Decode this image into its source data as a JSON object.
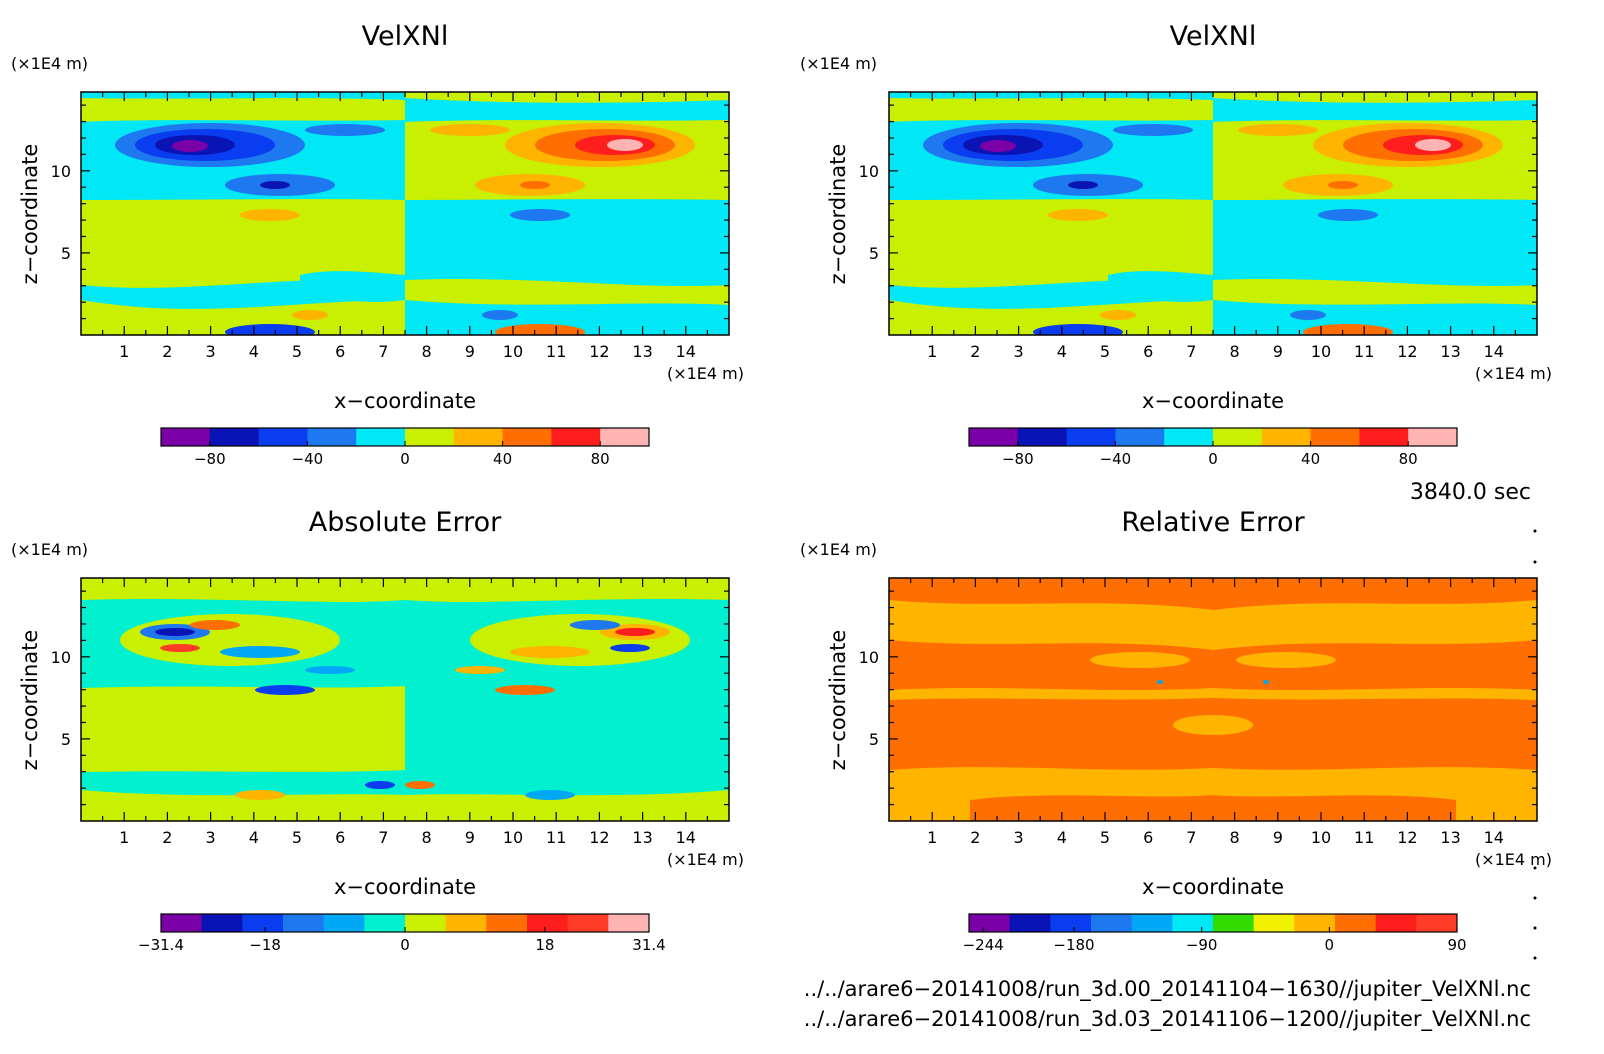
{
  "colors": {
    "purple": "#7a00a8",
    "navy": "#0a14b4",
    "blue": "#0a3cf0",
    "mid_blue": "#1e78f0",
    "sky": "#00a8f5",
    "cyan": "#00e8f5",
    "aqua": "#00f0d0",
    "lime": "#c8f000",
    "green": "#32dc00",
    "yellow": "#f0f000",
    "orange_light": "#ffb400",
    "orange": "#ff6e00",
    "red": "#ff1e1e",
    "red_orange": "#ff3c28",
    "pink": "#ffb4b4"
  },
  "chart_data": [
    {
      "type": "heatmap",
      "title": "VelXNl",
      "xlabel": "x−coordinate",
      "ylabel": "z−coordinate",
      "x_unit": "(×1E4 m)",
      "y_unit": "(×1E4 m)",
      "xlim": [
        0,
        15
      ],
      "ylim": [
        0,
        14.8
      ],
      "x_ticks": [
        "1",
        "2",
        "3",
        "4",
        "5",
        "6",
        "7",
        "8",
        "9",
        "10",
        "11",
        "12",
        "13",
        "14"
      ],
      "y_ticks": [
        "5",
        "10"
      ],
      "colorbar": {
        "range": [
          -100,
          100
        ],
        "tick_values": [
          -80,
          -40,
          0,
          40,
          80
        ],
        "tick_labels": [
          "−80",
          "−40",
          "0",
          "40",
          "80"
        ],
        "colors": [
          "#7a00a8",
          "#0a14b4",
          "#0a3cf0",
          "#1e78f0",
          "#00e8f5",
          "#c8f000",
          "#ffb400",
          "#ff6e00",
          "#ff1e1e",
          "#ffb4b4"
        ]
      },
      "background_value": "0 to 20 (left) / −20 to 0 (right)",
      "extremes": {
        "min": -90,
        "max": 90
      }
    },
    {
      "type": "heatmap",
      "title": "VelXNl",
      "xlabel": "x−coordinate",
      "ylabel": "z−coordinate",
      "x_unit": "(×1E4 m)",
      "y_unit": "(×1E4 m)",
      "xlim": [
        0,
        15
      ],
      "ylim": [
        0,
        14.8
      ],
      "x_ticks": [
        "1",
        "2",
        "3",
        "4",
        "5",
        "6",
        "7",
        "8",
        "9",
        "10",
        "11",
        "12",
        "13",
        "14"
      ],
      "y_ticks": [
        "5",
        "10"
      ],
      "colorbar": {
        "range": [
          -100,
          100
        ],
        "tick_values": [
          -80,
          -40,
          0,
          40,
          80
        ],
        "tick_labels": [
          "−80",
          "−40",
          "0",
          "40",
          "80"
        ],
        "colors": [
          "#7a00a8",
          "#0a14b4",
          "#0a3cf0",
          "#1e78f0",
          "#00e8f5",
          "#c8f000",
          "#ffb400",
          "#ff6e00",
          "#ff1e1e",
          "#ffb4b4"
        ]
      },
      "extremes": {
        "min": -90,
        "max": 90
      }
    },
    {
      "type": "heatmap",
      "title": "Absolute Error",
      "xlabel": "x−coordinate",
      "ylabel": "z−coordinate",
      "x_unit": "(×1E4 m)",
      "y_unit": "(×1E4 m)",
      "xlim": [
        0,
        15
      ],
      "ylim": [
        0,
        14.8
      ],
      "x_ticks": [
        "1",
        "2",
        "3",
        "4",
        "5",
        "6",
        "7",
        "8",
        "9",
        "10",
        "11",
        "12",
        "13",
        "14"
      ],
      "y_ticks": [
        "5",
        "10"
      ],
      "colorbar": {
        "range": [
          -31.4,
          31.4
        ],
        "tick_values": [
          -31.4,
          -18,
          0,
          18,
          31.4
        ],
        "tick_labels": [
          "−31.4",
          "−18",
          "0",
          "18",
          "31.4"
        ],
        "colors": [
          "#7a00a8",
          "#0a14b4",
          "#0a3cf0",
          "#1e78f0",
          "#00a8f5",
          "#00f0d0",
          "#c8f000",
          "#ffb400",
          "#ff6e00",
          "#ff1e1e",
          "#ff3c28",
          "#ffb4b4"
        ]
      }
    },
    {
      "type": "heatmap",
      "title": "Relative Error",
      "xlabel": "x−coordinate",
      "ylabel": "z−coordinate",
      "x_unit": "(×1E4 m)",
      "y_unit": "(×1E4 m)",
      "xlim": [
        0,
        15
      ],
      "ylim": [
        0,
        14.8
      ],
      "x_ticks": [
        "1",
        "2",
        "3",
        "4",
        "5",
        "6",
        "7",
        "8",
        "9",
        "10",
        "11",
        "12",
        "13",
        "14"
      ],
      "y_ticks": [
        "5",
        "10"
      ],
      "colorbar": {
        "range": [
          -254,
          90
        ],
        "tick_values": [
          -244,
          -180,
          -90,
          0,
          90
        ],
        "tick_labels": [
          "−244",
          "−180",
          "−90",
          "0",
          "90"
        ],
        "colors": [
          "#7a00a8",
          "#0a14b4",
          "#0a3cf0",
          "#1e78f0",
          "#00a8f5",
          "#00e8f5",
          "#32dc00",
          "#f0f000",
          "#ffb400",
          "#ff6e00",
          "#ff1e1e",
          "#ff3c28"
        ]
      }
    }
  ],
  "time_label": "3840.0 sec",
  "file_paths": [
    "../../arare6−20141008/run_3d.00_20141104−1630//jupiter_VelXNl.nc",
    "../../arare6−20141008/run_3d.03_20141106−1200//jupiter_VelXNl.nc"
  ]
}
